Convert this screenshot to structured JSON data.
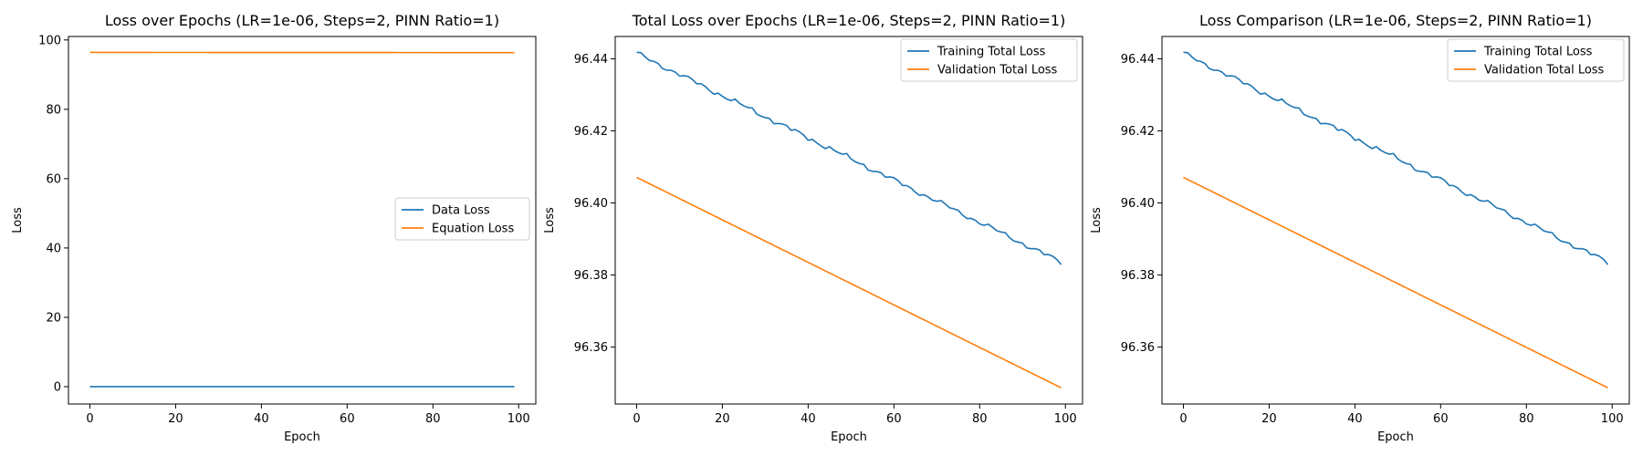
{
  "colors": {
    "series1": "#1f77b4",
    "series2": "#ff7f0e",
    "axes": "#000000",
    "legend_border": "#cccccc"
  },
  "chart_data": [
    {
      "type": "line",
      "title": "Loss over Epochs (LR=1e-06, Steps=2, PINN Ratio=1)",
      "xlabel": "Epoch",
      "ylabel": "Loss",
      "xlim": [
        -5,
        104
      ],
      "ylim": [
        -5,
        101
      ],
      "xticks": [
        0,
        20,
        40,
        60,
        80,
        100
      ],
      "yticks": [
        0,
        20,
        40,
        60,
        80,
        100
      ],
      "xtick_labels": [
        "0",
        "20",
        "40",
        "60",
        "80",
        "100"
      ],
      "ytick_labels": [
        "0",
        "20",
        "40",
        "60",
        "80",
        "100"
      ],
      "legend": "center-right",
      "grid": false,
      "series": [
        {
          "name": "Data Loss",
          "color": "#1f77b4",
          "start": 0.01,
          "end": 0.01
        },
        {
          "name": "Equation Loss",
          "color": "#ff7f0e",
          "start": 96.41,
          "end": 96.35
        }
      ]
    },
    {
      "type": "line",
      "title": "Total Loss over Epochs (LR=1e-06, Steps=2, PINN Ratio=1)",
      "xlabel": "Epoch",
      "ylabel": "Loss",
      "xlim": [
        -5,
        104
      ],
      "ylim": [
        96.3442,
        96.4462
      ],
      "xticks": [
        0,
        20,
        40,
        60,
        80,
        100
      ],
      "yticks": [
        96.36,
        96.38,
        96.4,
        96.42,
        96.44
      ],
      "xtick_labels": [
        "0",
        "20",
        "40",
        "60",
        "80",
        "100"
      ],
      "ytick_labels": [
        "96.36",
        "96.38",
        "96.40",
        "96.42",
        "96.44"
      ],
      "legend": "top-right",
      "grid": false,
      "series": [
        {
          "name": "Training Total Loss",
          "color": "#1f77b4",
          "start": 96.4415,
          "end": 96.3835,
          "noise": 0.0006
        },
        {
          "name": "Validation Total Loss",
          "color": "#ff7f0e",
          "start": 96.4071,
          "end": 96.3487
        }
      ]
    },
    {
      "type": "line",
      "title": "Loss Comparison (LR=1e-06, Steps=2, PINN Ratio=1)",
      "xlabel": "Epoch",
      "ylabel": "Loss",
      "xlim": [
        -5,
        104
      ],
      "ylim": [
        96.3442,
        96.4462
      ],
      "xticks": [
        0,
        20,
        40,
        60,
        80,
        100
      ],
      "yticks": [
        96.36,
        96.38,
        96.4,
        96.42,
        96.44
      ],
      "xtick_labels": [
        "0",
        "20",
        "40",
        "60",
        "80",
        "100"
      ],
      "ytick_labels": [
        "96.36",
        "96.38",
        "96.40",
        "96.42",
        "96.44"
      ],
      "legend": "top-right",
      "grid": false,
      "series": [
        {
          "name": "Training Total Loss",
          "color": "#1f77b4",
          "start": 96.4415,
          "end": 96.3835,
          "noise": 0.0006
        },
        {
          "name": "Validation Total Loss",
          "color": "#ff7f0e",
          "start": 96.4071,
          "end": 96.3487
        }
      ]
    }
  ]
}
